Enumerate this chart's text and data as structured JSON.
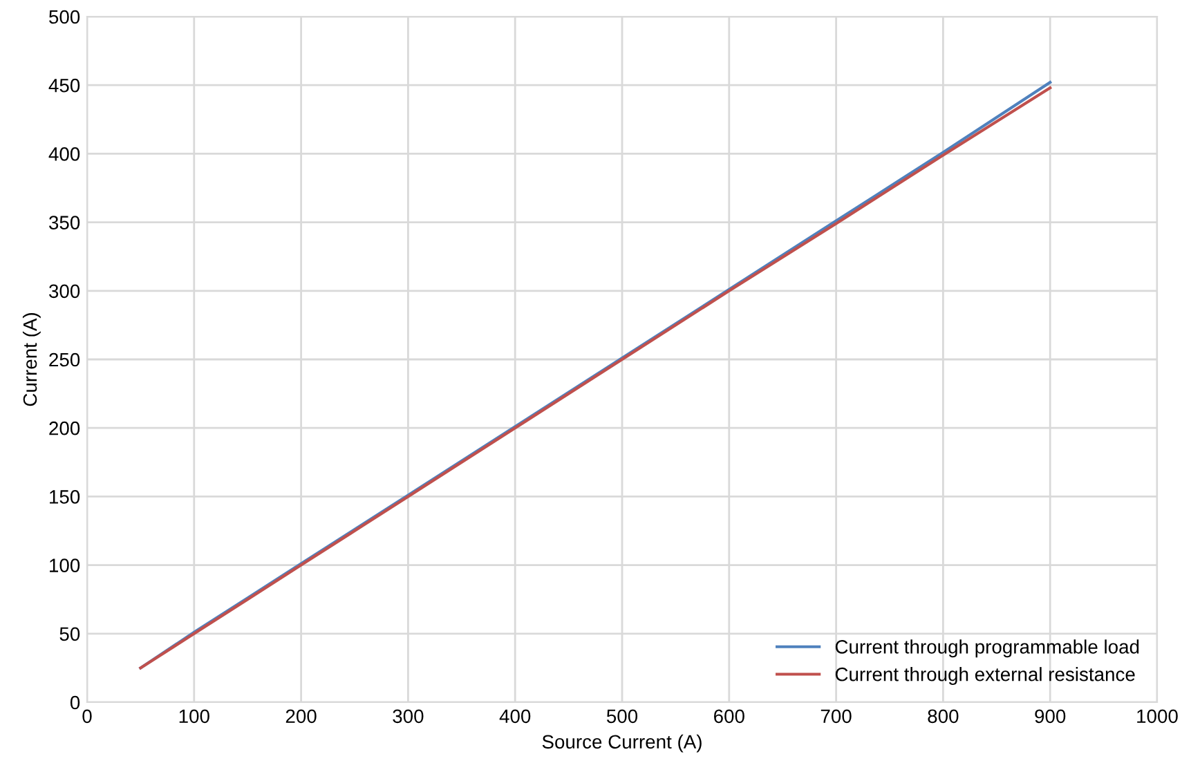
{
  "chart_data": {
    "type": "line",
    "xlabel": "Source Current (A)",
    "ylabel": "Current (A)",
    "x": [
      50,
      100,
      150,
      200,
      300,
      400,
      500,
      600,
      700,
      800,
      900
    ],
    "series": [
      {
        "name": "Current through programmable load",
        "color": "#4f81bd",
        "values": [
          25,
          51,
          76,
          101,
          151,
          201,
          251,
          301,
          351,
          401,
          452
        ]
      },
      {
        "name": "Current through external resistance",
        "color": "#c0504d",
        "values": [
          25,
          50,
          75,
          100,
          150,
          200,
          250,
          300,
          349,
          399,
          448
        ]
      }
    ],
    "xlim": [
      0,
      1000
    ],
    "ylim": [
      0,
      500
    ],
    "xticks": [
      0,
      100,
      200,
      300,
      400,
      500,
      600,
      700,
      800,
      900,
      1000
    ],
    "yticks": [
      0,
      50,
      100,
      150,
      200,
      250,
      300,
      350,
      400,
      450,
      500
    ],
    "grid": true,
    "legend": "bottom right",
    "marker": "none",
    "line_style": "solid"
  }
}
